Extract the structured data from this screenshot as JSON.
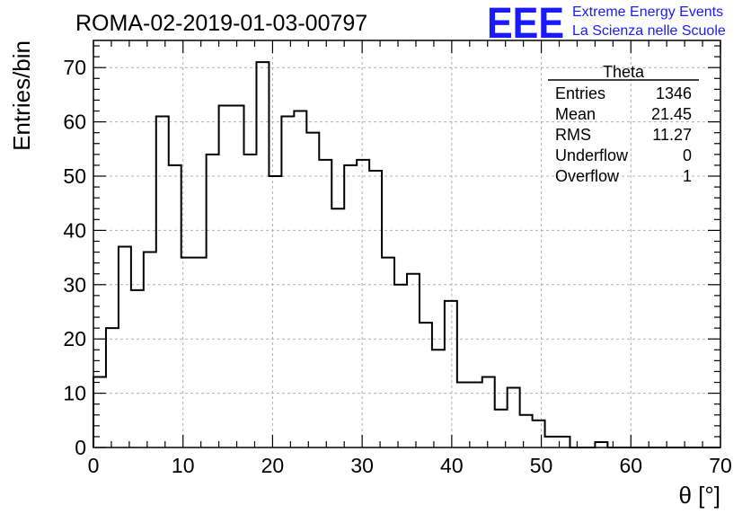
{
  "header": {
    "run_title": "ROMA-02-2019-01-03-00797",
    "logo_mark": "EEE",
    "logo_line1": "Extreme Energy Events",
    "logo_line2": "La Scienza nelle Scuole",
    "logo_color": "#1a1aff"
  },
  "stats": {
    "title": "Theta",
    "rows": [
      {
        "label": "Entries",
        "value": "1346"
      },
      {
        "label": "Mean",
        "value": "21.45"
      },
      {
        "label": "RMS",
        "value": "11.27"
      },
      {
        "label": "Underflow",
        "value": "0"
      },
      {
        "label": "Overflow",
        "value": "1"
      }
    ]
  },
  "chart_data": {
    "type": "histogram",
    "title": "ROMA-02-2019-01-03-00797",
    "xlabel": "θ [°]",
    "ylabel": "Entries/bin",
    "xlim": [
      0,
      70
    ],
    "ylim": [
      0,
      75
    ],
    "bin_width": 1.4,
    "grid": true,
    "x_ticks": [
      "0",
      "10",
      "20",
      "30",
      "40",
      "50",
      "60",
      "70"
    ],
    "y_ticks": [
      "0",
      "10",
      "20",
      "30",
      "40",
      "50",
      "60",
      "70"
    ],
    "bin_edges_start": 0,
    "values": [
      13,
      22,
      37,
      29,
      36,
      61,
      52,
      35,
      35,
      54,
      63,
      63,
      54,
      71,
      50,
      61,
      62,
      58,
      53,
      44,
      52,
      53,
      51,
      35,
      30,
      32,
      23,
      18,
      27,
      12,
      12,
      13,
      7,
      11,
      6,
      5,
      2,
      2,
      0,
      0,
      1,
      0,
      0,
      0,
      0,
      0,
      0,
      0,
      0,
      0
    ],
    "line_color": "#000000",
    "grid_color": "#b0b0b0"
  }
}
